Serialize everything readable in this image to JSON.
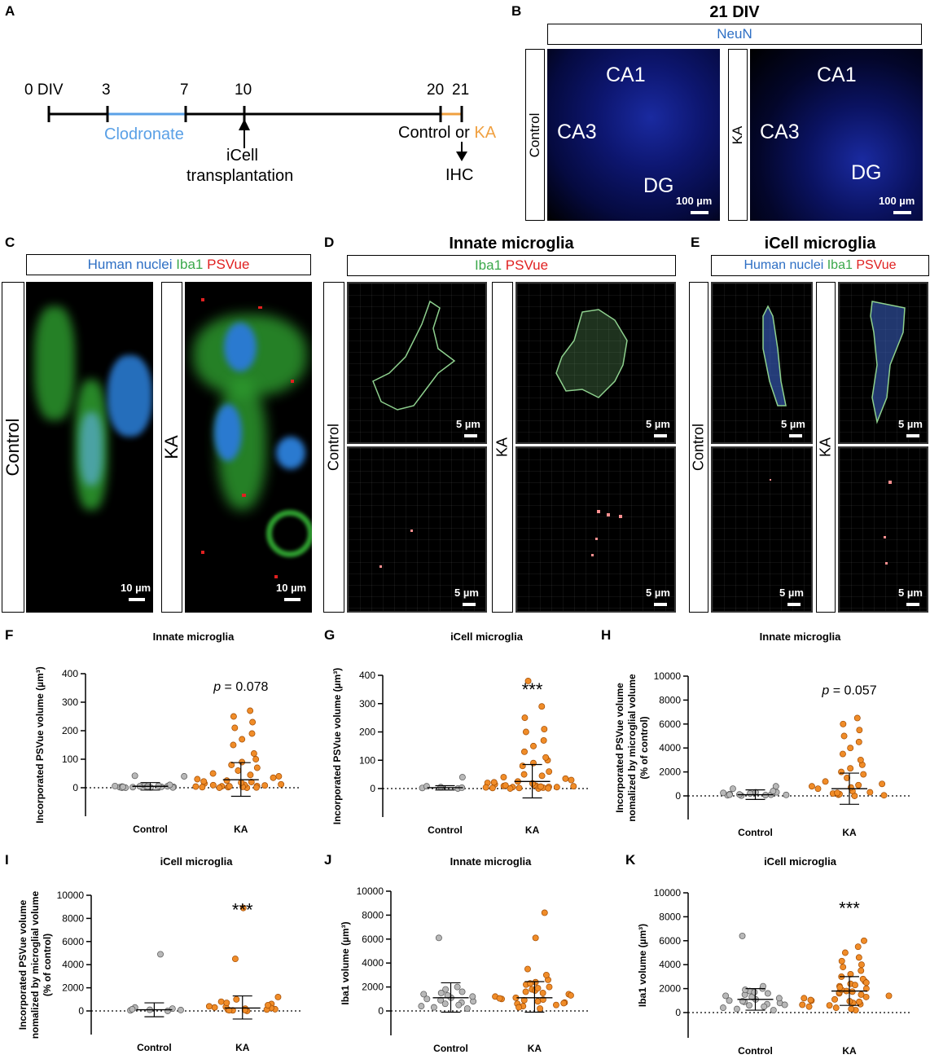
{
  "panel_letters": [
    "A",
    "B",
    "C",
    "D",
    "E",
    "F",
    "G",
    "H",
    "I",
    "J",
    "K"
  ],
  "panelA": {
    "ticks": [
      "0 DIV",
      "3",
      "7",
      "10",
      "20",
      "21"
    ],
    "clodronate": "Clodronate",
    "icell1": "iCell",
    "icell2": "transplantation",
    "control_or": "Control or",
    "ka": "KA",
    "ihc": "IHC",
    "colors": {
      "clodronate": "#5aa0e6",
      "ka": "#f0a040"
    }
  },
  "panelB": {
    "title": "21 DIV",
    "stain": "NeuN",
    "cond_control": "Control",
    "cond_ka": "KA",
    "regions": [
      "CA1",
      "CA3",
      "DG"
    ],
    "scale": "100 µm"
  },
  "panelC": {
    "stain_parts": [
      "Human nuclei",
      "Iba1",
      "PSVue"
    ],
    "cond_control": "Control",
    "cond_ka": "KA",
    "scale": "10 µm"
  },
  "panelD": {
    "title": "Innate microglia",
    "stain_parts": [
      "Iba1",
      "PSVue"
    ],
    "cond_control": "Control",
    "cond_ka": "KA",
    "scale": "5 µm"
  },
  "panelE": {
    "title": "iCell microglia",
    "stain_parts": [
      "Human nuclei",
      "Iba1",
      "PSVue"
    ],
    "cond_control": "Control",
    "cond_ka": "KA",
    "scale": "5 µm"
  },
  "chart_data": [
    {
      "panel": "F",
      "type": "scatter",
      "title": "Innate microglia",
      "ylabel": "Incorporated PSVue volume (µm³)",
      "categories": [
        "Control",
        "KA"
      ],
      "ylim": [
        0,
        400
      ],
      "yticks": [
        0,
        100,
        200,
        300,
        400
      ],
      "annotation": "p = 0.078",
      "series": [
        {
          "values": [
            5,
            2,
            8,
            3,
            0,
            1,
            4,
            40,
            42,
            10,
            6,
            2,
            3,
            1,
            0,
            5,
            7,
            2,
            4,
            3
          ]
        },
        {
          "values": [
            0,
            2,
            5,
            10,
            15,
            30,
            40,
            50,
            60,
            70,
            80,
            90,
            100,
            120,
            150,
            170,
            190,
            210,
            230,
            250,
            270,
            5,
            8,
            12,
            3,
            20,
            25,
            35,
            45,
            2,
            6,
            9,
            0,
            1,
            4,
            18,
            22
          ]
        }
      ],
      "means": [
        5,
        28
      ],
      "sd_low": [
        -8,
        -30
      ],
      "sd_high": [
        18,
        88
      ]
    },
    {
      "panel": "G",
      "type": "scatter",
      "title": "iCell microglia",
      "ylabel": "Incorporated PSVue volume (µm³)",
      "categories": [
        "Control",
        "KA"
      ],
      "ylim": [
        0,
        400
      ],
      "yticks": [
        0,
        100,
        200,
        300,
        400
      ],
      "annotation": "***",
      "series": [
        {
          "values": [
            0,
            2,
            5,
            40,
            8,
            3
          ]
        },
        {
          "values": [
            0,
            2,
            5,
            10,
            15,
            20,
            30,
            40,
            50,
            60,
            80,
            90,
            100,
            110,
            130,
            150,
            170,
            200,
            210,
            250,
            290,
            380,
            5,
            8,
            12,
            3,
            25,
            35,
            45,
            2,
            6,
            9,
            0,
            1,
            4,
            18,
            22,
            7,
            11
          ]
        }
      ],
      "means": [
        3,
        25
      ],
      "sd_low": [
        -5,
        -33
      ],
      "sd_high": [
        10,
        85
      ]
    },
    {
      "panel": "H",
      "type": "scatter",
      "title": "Innate microglia",
      "ylabel": "Incorporated PSVue volume nomalized by microglial volume (% of control)",
      "categories": [
        "Control",
        "KA"
      ],
      "ylim": [
        0,
        10000
      ],
      "yticks": [
        0,
        2000,
        4000,
        6000,
        8000,
        10000
      ],
      "annotation": "p = 0.057",
      "series": [
        {
          "values": [
            100,
            50,
            200,
            300,
            600,
            800,
            150,
            80,
            20,
            400,
            250,
            120,
            60,
            300,
            100
          ]
        },
        {
          "values": [
            0,
            100,
            200,
            400,
            600,
            800,
            1000,
            1200,
            1500,
            1800,
            2000,
            2300,
            2600,
            3000,
            3500,
            4000,
            4500,
            5000,
            5500,
            6000,
            6500,
            150,
            300,
            50,
            700,
            900,
            250
          ]
        }
      ],
      "means": [
        100,
        600
      ],
      "sd_low": [
        -300,
        -700
      ],
      "sd_high": [
        500,
        1900
      ]
    },
    {
      "panel": "I",
      "type": "scatter",
      "title": "iCell microglia",
      "ylabel": "Incorporated PSVue volume nomalized by microglial volume (% of control)",
      "categories": [
        "Control",
        "KA"
      ],
      "ylim": [
        0,
        10000
      ],
      "yticks": [
        0,
        2000,
        4000,
        6000,
        8000,
        10000
      ],
      "annotation": "***",
      "series": [
        {
          "values": [
            0,
            50,
            100,
            200,
            300,
            4900,
            150,
            80
          ]
        },
        {
          "values": [
            0,
            50,
            100,
            200,
            300,
            400,
            600,
            800,
            1000,
            1200,
            4500,
            8900,
            150,
            250,
            350,
            80,
            120,
            60,
            500,
            700
          ]
        }
      ],
      "means": [
        100,
        250
      ],
      "sd_low": [
        -500,
        -700
      ],
      "sd_high": [
        700,
        1300
      ]
    },
    {
      "panel": "J",
      "type": "scatter",
      "title": "Innate microglia",
      "ylabel": "Iba1 volume (µm³)",
      "categories": [
        "Control",
        "KA"
      ],
      "ylim": [
        0,
        10000
      ],
      "yticks": [
        0,
        2000,
        4000,
        6000,
        8000,
        10000
      ],
      "annotation": "",
      "series": [
        {
          "values": [
            200,
            400,
            600,
            800,
            1000,
            1200,
            1400,
            1600,
            1800,
            2000,
            6100,
            300,
            700,
            1100,
            1500,
            900,
            500,
            1300
          ]
        },
        {
          "values": [
            200,
            400,
            600,
            800,
            1000,
            1200,
            1400,
            1600,
            1800,
            2000,
            2200,
            2400,
            2600,
            3000,
            3500,
            6100,
            8200,
            300,
            700,
            1100,
            1500,
            900,
            500,
            1300,
            1700,
            1900,
            2300,
            650,
            950,
            1050
          ]
        }
      ],
      "means": [
        1100,
        1100
      ],
      "sd_low": [
        -100,
        -100
      ],
      "sd_high": [
        2350,
        2450
      ]
    },
    {
      "panel": "K",
      "type": "scatter",
      "title": "iCell microglia",
      "ylabel": "Iba1 volume (µm³)",
      "categories": [
        "Control",
        "KA"
      ],
      "ylim": [
        0,
        10000
      ],
      "yticks": [
        0,
        2000,
        4000,
        6000,
        8000,
        10000
      ],
      "annotation": "***",
      "series": [
        {
          "values": [
            200,
            400,
            600,
            800,
            1000,
            1200,
            1400,
            1600,
            1800,
            2000,
            6400,
            300,
            700,
            1100,
            1500,
            900,
            500,
            1300,
            1700,
            1900,
            2200,
            650,
            950
          ]
        },
        {
          "values": [
            200,
            400,
            600,
            800,
            1000,
            1200,
            1400,
            1600,
            1800,
            2000,
            2200,
            2400,
            2600,
            2800,
            3000,
            3200,
            3500,
            3800,
            4000,
            4300,
            4600,
            5000,
            5500,
            6000,
            300,
            700,
            1100,
            1500,
            900,
            500,
            1300,
            1700,
            1900,
            2300,
            650,
            950,
            1050,
            1750,
            2100,
            2500
          ]
        }
      ],
      "means": [
        1100,
        1800
      ],
      "sd_low": [
        200,
        600
      ],
      "sd_high": [
        2000,
        3000
      ]
    }
  ]
}
